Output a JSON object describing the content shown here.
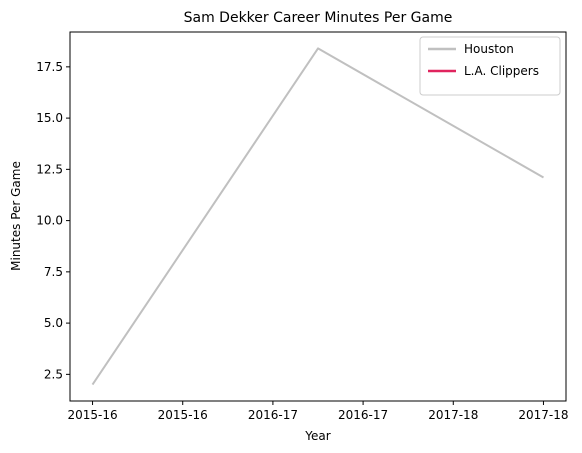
{
  "chart_data": {
    "type": "line",
    "title": "Sam Dekker Career Minutes Per Game",
    "xlabel": "Year",
    "ylabel": "Minutes Per Game",
    "x_tick_labels": [
      "2015-16",
      "2015-16",
      "2016-17",
      "2016-17",
      "2017-18",
      "2017-18"
    ],
    "x_ticks": [
      0,
      0.4,
      0.8,
      1.2,
      1.6,
      2.0
    ],
    "xlim": [
      -0.1,
      2.1
    ],
    "ylim": [
      1.2,
      19.2
    ],
    "y_ticks": [
      2.5,
      5.0,
      7.5,
      10.0,
      12.5,
      15.0,
      17.5
    ],
    "y_tick_labels": [
      "2.5",
      "5.0",
      "7.5",
      "10.0",
      "12.5",
      "15.0",
      "17.5"
    ],
    "grid": false,
    "legend_position": "top-right",
    "series": [
      {
        "name": "Houston",
        "color": "#c0c0c0",
        "points": [
          {
            "x": 0,
            "y": 2.0
          },
          {
            "x": 1,
            "y": 18.4
          },
          {
            "x": 2,
            "y": 12.1
          }
        ]
      },
      {
        "name": "L.A. Clippers",
        "color": "#e0245e",
        "points": []
      }
    ]
  }
}
